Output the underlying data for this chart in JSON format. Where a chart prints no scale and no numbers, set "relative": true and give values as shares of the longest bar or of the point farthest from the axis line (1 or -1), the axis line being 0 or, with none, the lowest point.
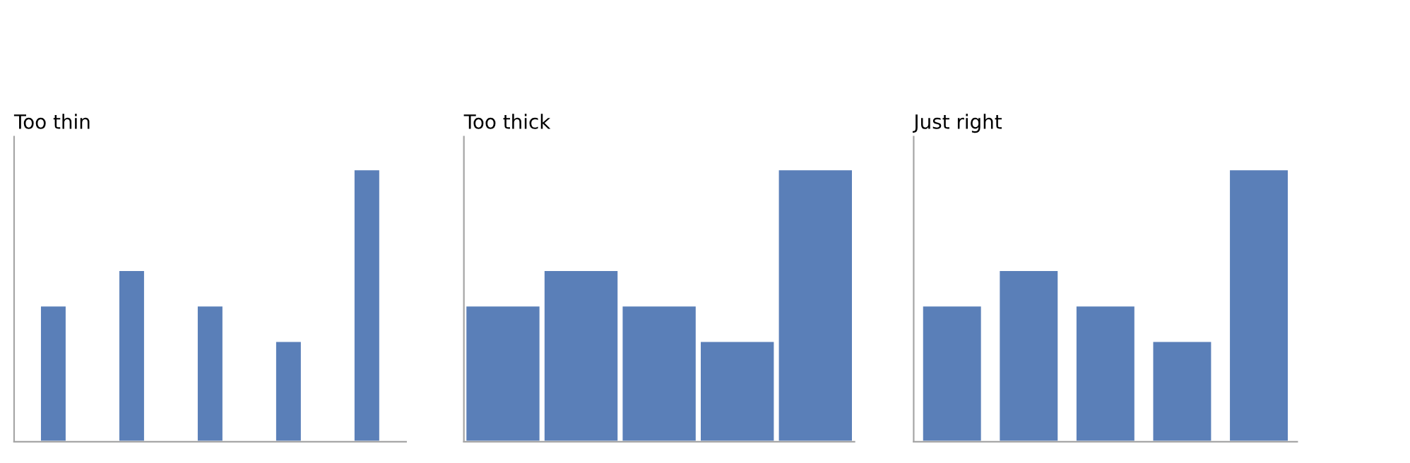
{
  "chart_data": [
    {
      "type": "bar",
      "title": "Too thin",
      "categories": [
        null,
        null,
        null,
        null,
        null
      ],
      "relative": true,
      "values": [
        0.5,
        0.63,
        0.5,
        0.37,
        1
      ],
      "color": "#5a7fb8"
    },
    {
      "type": "bar",
      "title": "Too thick",
      "categories": [
        null,
        null,
        null,
        null,
        null
      ],
      "relative": true,
      "values": [
        0.5,
        0.63,
        0.5,
        0.37,
        1
      ],
      "color": "#5a7fb8"
    },
    {
      "type": "bar",
      "title": "Just right",
      "categories": [
        null,
        null,
        null,
        null,
        null
      ],
      "relative": true,
      "values": [
        0.5,
        0.63,
        0.5,
        0.37,
        1
      ],
      "color": "#5a7fb8"
    }
  ]
}
